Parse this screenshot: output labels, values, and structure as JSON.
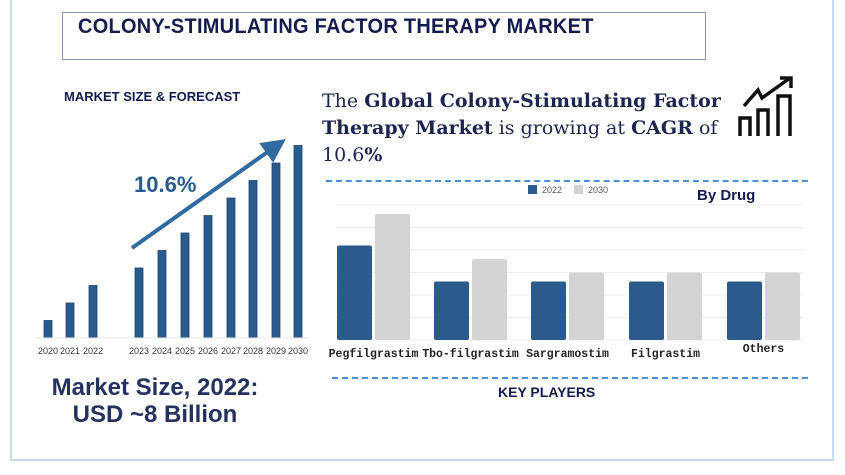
{
  "title": "COLONY-STIMULATING FACTOR THERAPY MARKET",
  "forecast_label": "MARKET SIZE & FORECAST",
  "headline": {
    "p1": "The ",
    "b1": "Global Colony-Stimulating Factor Therapy Market",
    "p2": " is growing at ",
    "b2": "CAGR",
    "p3": " of 10.6",
    "b3": "%"
  },
  "market_size": {
    "line1": "Market Size, 2022:",
    "line2": "USD ~8 Billion"
  },
  "by_drug_label": "By Drug",
  "key_players_label": "KEY PLAYERS",
  "icons": {
    "growth": "growth-chart-icon"
  },
  "colors": {
    "primary": "#2a5b8c",
    "secondary": "#d3d3d3",
    "text": "#141c4e",
    "dash": "#4a8fd0"
  },
  "chart_data": [
    {
      "type": "bar",
      "categories": [
        "2020",
        "2021",
        "2022",
        "2023",
        "2024",
        "2025",
        "2026",
        "2027",
        "2028",
        "2029",
        "2030"
      ],
      "values": [
        1,
        2,
        3,
        4,
        5,
        6,
        7,
        8,
        9,
        10,
        11
      ],
      "annotation": "10.6%",
      "title": "",
      "grid": false
    },
    {
      "type": "bar",
      "categories": [
        "Pegfilgrastim",
        "Tbo-filgrastim",
        "Sargramostim",
        "Filgrastim",
        "Others"
      ],
      "series": [
        {
          "name": "2022",
          "values": [
            4.2,
            2.6,
            2.6,
            2.6,
            2.6
          ],
          "color": "#2a5b8c"
        },
        {
          "name": "2030",
          "values": [
            5.6,
            3.6,
            3.0,
            3.0,
            3.0
          ],
          "color": "#d3d3d3"
        }
      ],
      "ylim": [
        0,
        6
      ],
      "grid": true,
      "legend": "top-center"
    }
  ]
}
